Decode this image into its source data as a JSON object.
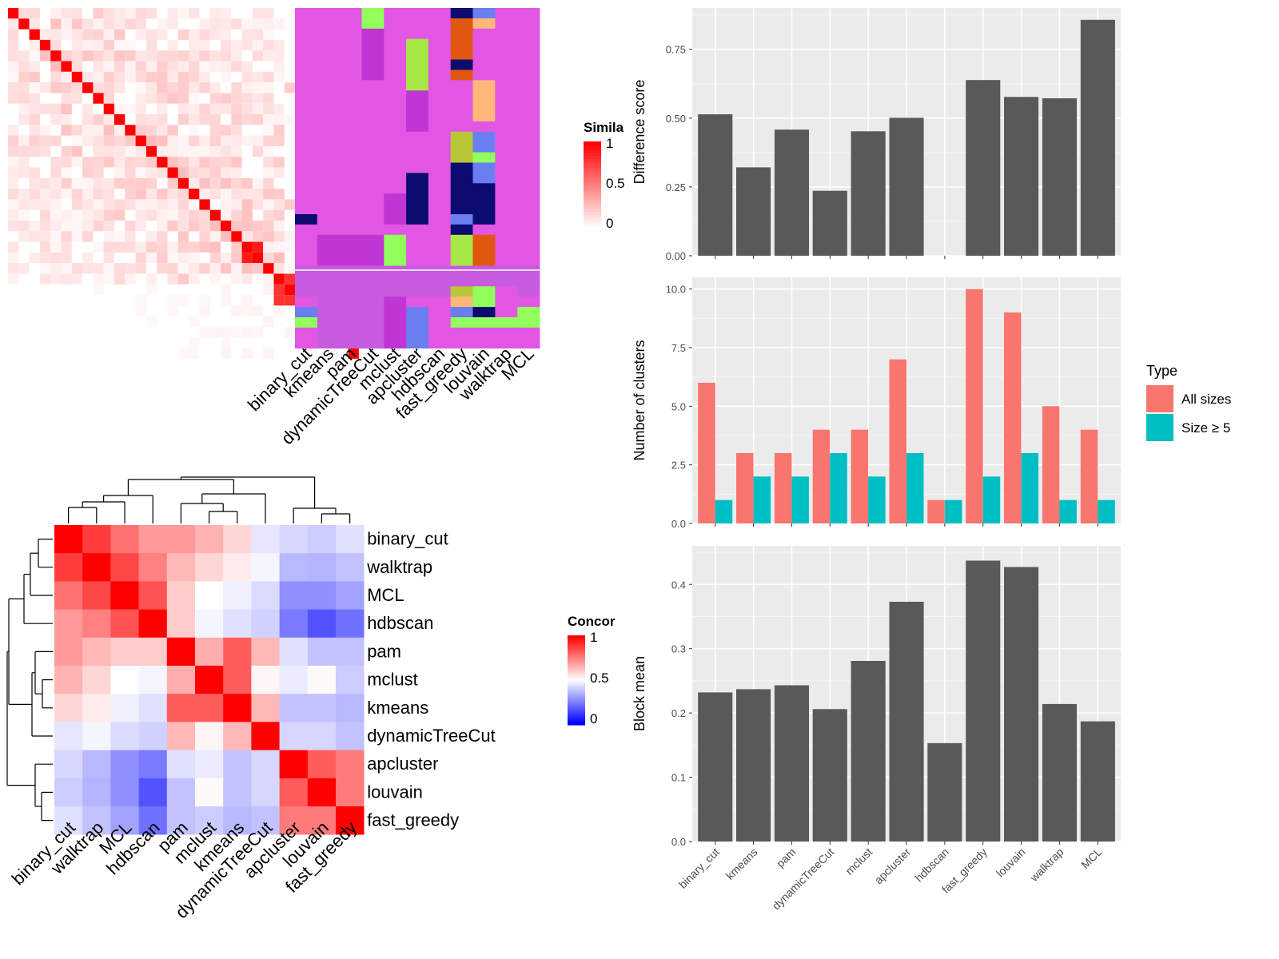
{
  "colors": {
    "panel_bg": "#ebebeb",
    "grid": "#ffffff",
    "bar": "#595959",
    "all_sizes": "#f8766d",
    "size_ge5": "#00bfc4",
    "heat_high": "#ff0000",
    "heat_mid": "#ffffff",
    "heat_low": "#0000ff"
  },
  "methods": [
    "binary_cut",
    "kmeans",
    "pam",
    "dynamicTreeCut",
    "mclust",
    "apcluster",
    "hdbscan",
    "fast_greedy",
    "louvain",
    "walktrap",
    "MCL"
  ],
  "chart_data": [
    {
      "type": "heatmap",
      "name": "similarity-heatmap",
      "legend": {
        "title": "Similarity",
        "ticks": [
          "1",
          "0.5",
          "0"
        ]
      },
      "size": 33,
      "diagonal": 1,
      "block_values": [
        1,
        1,
        1,
        1,
        1,
        1,
        1,
        1,
        1,
        1,
        1,
        1,
        1,
        1,
        1,
        1,
        1,
        1,
        1,
        1,
        1,
        1,
        1,
        1,
        0.9,
        0.9,
        0.9,
        1,
        1,
        1,
        1,
        1,
        1
      ]
    },
    {
      "type": "heatmap",
      "name": "partition-heatmap",
      "columns": [
        "binary_cut",
        "kmeans",
        "pam",
        "dynamicTreeCut",
        "mclust",
        "apcluster",
        "hdbscan",
        "fast_greedy",
        "louvain",
        "walktrap",
        "MCL"
      ],
      "rows": 33,
      "palette": {
        "magenta": "#e256e4",
        "purple": "#c135d5",
        "lavender": "#c65bdf",
        "green": "#92ff5c",
        "lime": "#a6e844",
        "navy": "#0b0b70",
        "blue": "#6b7ef0",
        "orange": "#e15611",
        "peach": "#ffb77a",
        "olive": "#b8c738"
      }
    },
    {
      "type": "heatmap",
      "name": "concordance-heatmap",
      "legend": {
        "title": "Concordance",
        "ticks": [
          "1",
          "0.5",
          "0"
        ]
      },
      "rows": [
        "binary_cut",
        "walktrap",
        "MCL",
        "hdbscan",
        "pam",
        "mclust",
        "kmeans",
        "dynamicTreeCut",
        "apcluster",
        "louvain",
        "fast_greedy"
      ],
      "columns": [
        "binary_cut",
        "walktrap",
        "MCL",
        "hdbscan",
        "pam",
        "mclust",
        "kmeans",
        "dynamicTreeCut",
        "apcluster",
        "louvain",
        "fast_greedy"
      ],
      "values": [
        [
          1.0,
          0.88,
          0.78,
          0.7,
          0.7,
          0.65,
          0.58,
          0.45,
          0.42,
          0.4,
          0.44
        ],
        [
          0.88,
          1.0,
          0.86,
          0.75,
          0.64,
          0.58,
          0.54,
          0.48,
          0.36,
          0.35,
          0.38
        ],
        [
          0.78,
          0.86,
          1.0,
          0.84,
          0.6,
          0.5,
          0.47,
          0.43,
          0.28,
          0.28,
          0.32
        ],
        [
          0.7,
          0.75,
          0.84,
          1.0,
          0.6,
          0.48,
          0.44,
          0.41,
          0.24,
          0.16,
          0.22
        ],
        [
          0.7,
          0.64,
          0.6,
          0.6,
          1.0,
          0.66,
          0.82,
          0.64,
          0.44,
          0.38,
          0.38
        ],
        [
          0.65,
          0.58,
          0.5,
          0.48,
          0.66,
          1.0,
          0.82,
          0.52,
          0.46,
          0.51,
          0.4
        ],
        [
          0.58,
          0.54,
          0.47,
          0.44,
          0.82,
          0.82,
          1.0,
          0.64,
          0.38,
          0.38,
          0.36
        ],
        [
          0.45,
          0.48,
          0.43,
          0.41,
          0.64,
          0.52,
          0.64,
          1.0,
          0.42,
          0.42,
          0.38
        ],
        [
          0.42,
          0.36,
          0.28,
          0.24,
          0.44,
          0.46,
          0.38,
          0.42,
          1.0,
          0.82,
          0.76
        ],
        [
          0.4,
          0.35,
          0.28,
          0.16,
          0.38,
          0.51,
          0.38,
          0.42,
          0.82,
          1.0,
          0.76
        ],
        [
          0.44,
          0.38,
          0.32,
          0.22,
          0.38,
          0.4,
          0.36,
          0.38,
          0.76,
          0.76,
          1.0
        ]
      ],
      "dendrogram": "hierarchical clustering of methods"
    },
    {
      "type": "bar",
      "name": "difference-score",
      "categories": [
        "binary_cut",
        "kmeans",
        "pam",
        "dynamicTreeCut",
        "mclust",
        "apcluster",
        "hdbscan",
        "fast_greedy",
        "louvain",
        "walktrap",
        "MCL"
      ],
      "values": [
        0.514,
        0.321,
        0.458,
        0.236,
        0.452,
        0.501,
        null,
        0.638,
        0.577,
        0.572,
        0.857
      ],
      "ylabel": "Difference score",
      "ylim": [
        0,
        0.9
      ],
      "yticks": [
        "0.00",
        "0.25",
        "0.50",
        "0.75"
      ],
      "grid": true
    },
    {
      "type": "bar",
      "name": "number-of-clusters",
      "categories": [
        "binary_cut",
        "kmeans",
        "pam",
        "dynamicTreeCut",
        "mclust",
        "apcluster",
        "hdbscan",
        "fast_greedy",
        "louvain",
        "walktrap",
        "MCL"
      ],
      "series": [
        {
          "name": "All sizes",
          "values": [
            6,
            3,
            3,
            4,
            4,
            7,
            1,
            10,
            9,
            5,
            4
          ]
        },
        {
          "name": "Size ≥ 5",
          "values": [
            1,
            2,
            2,
            3,
            2,
            3,
            1,
            2,
            3,
            1,
            1
          ]
        }
      ],
      "ylabel": "Number of clusters",
      "ylim": [
        0,
        10.5
      ],
      "yticks": [
        "0.0",
        "2.5",
        "5.0",
        "7.5",
        "10.0"
      ],
      "legend": {
        "title": "Type",
        "position": "right"
      },
      "grid": true
    },
    {
      "type": "bar",
      "name": "block-mean",
      "categories": [
        "binary_cut",
        "kmeans",
        "pam",
        "dynamicTreeCut",
        "mclust",
        "apcluster",
        "hdbscan",
        "fast_greedy",
        "louvain",
        "walktrap",
        "MCL"
      ],
      "values": [
        0.232,
        0.237,
        0.243,
        0.206,
        0.281,
        0.373,
        0.153,
        0.437,
        0.427,
        0.214,
        0.187
      ],
      "ylabel": "Block mean",
      "ylim": [
        0,
        0.46
      ],
      "yticks": [
        "0.0",
        "0.1",
        "0.2",
        "0.3",
        "0.4"
      ],
      "grid": true
    }
  ]
}
